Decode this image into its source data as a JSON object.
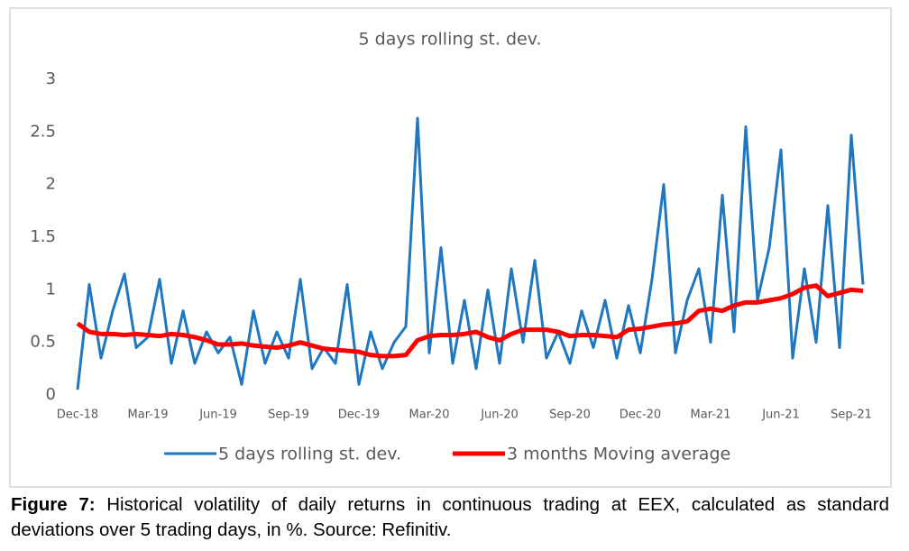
{
  "chart_data": {
    "type": "line",
    "title": "5 days rolling st. dev.",
    "categories": [
      "Dec-18",
      null,
      null,
      null,
      null,
      null,
      "Mar-19",
      null,
      null,
      null,
      null,
      null,
      "Jun-19",
      null,
      null,
      null,
      null,
      null,
      "Sep-19",
      null,
      null,
      null,
      null,
      null,
      "Dec-19",
      null,
      null,
      null,
      null,
      null,
      "Mar-20",
      null,
      null,
      null,
      null,
      null,
      "Jun-20",
      null,
      null,
      null,
      null,
      null,
      "Sep-20",
      null,
      null,
      null,
      null,
      null,
      "Dec-20",
      null,
      null,
      null,
      null,
      null,
      "Mar-21",
      null,
      null,
      null,
      null,
      null,
      "Jun-21",
      null,
      null,
      null,
      null,
      null,
      "Sep-21",
      null
    ],
    "series": [
      {
        "name": "5 days rolling st. dev.",
        "color": "#1f77c0",
        "values": [
          0.05,
          1.05,
          0.35,
          0.8,
          1.15,
          0.45,
          0.55,
          1.1,
          0.3,
          0.8,
          0.3,
          0.6,
          0.4,
          0.55,
          0.1,
          0.8,
          0.3,
          0.6,
          0.35,
          1.1,
          0.25,
          0.45,
          0.3,
          1.05,
          0.1,
          0.6,
          0.25,
          0.5,
          0.65,
          2.63,
          0.4,
          1.4,
          0.3,
          0.9,
          0.25,
          1.0,
          0.3,
          1.2,
          0.5,
          1.28,
          0.35,
          0.6,
          0.3,
          0.8,
          0.45,
          0.9,
          0.35,
          0.85,
          0.4,
          1.1,
          2.0,
          0.4,
          0.9,
          1.2,
          0.5,
          1.9,
          0.6,
          2.55,
          0.9,
          1.4,
          2.33,
          0.35,
          1.2,
          0.5,
          1.8,
          0.45,
          2.47,
          1.05
        ]
      },
      {
        "name": "3 months Moving average",
        "color": "#ff0000",
        "values": [
          0.68,
          0.6,
          0.58,
          0.58,
          0.57,
          0.58,
          0.57,
          0.56,
          0.58,
          0.57,
          0.55,
          0.52,
          0.48,
          0.48,
          0.49,
          0.47,
          0.46,
          0.45,
          0.47,
          0.5,
          0.47,
          0.44,
          0.43,
          0.42,
          0.41,
          0.38,
          0.37,
          0.37,
          0.38,
          0.52,
          0.56,
          0.57,
          0.57,
          0.58,
          0.6,
          0.55,
          0.52,
          0.58,
          0.62,
          0.62,
          0.62,
          0.6,
          0.56,
          0.57,
          0.57,
          0.56,
          0.55,
          0.62,
          0.63,
          0.65,
          0.67,
          0.68,
          0.7,
          0.8,
          0.82,
          0.8,
          0.85,
          0.88,
          0.88,
          0.9,
          0.92,
          0.96,
          1.02,
          1.04,
          0.94,
          0.97,
          1.0,
          0.99
        ]
      }
    ],
    "ylim": [
      0,
      3
    ],
    "yticks": [
      0,
      {
        "value": 0.5,
        "label": "0.5"
      },
      1,
      {
        "value": 1.5,
        "label": "1.5"
      },
      2,
      {
        "value": 2.5,
        "label": "2.5"
      },
      3
    ],
    "grid": false,
    "legend": "bottom"
  },
  "caption": {
    "label": "Figure 7:",
    "text": "Historical volatility of daily returns in continuous trading at EEX, calculated as standard deviations over 5 trading days, in %. Source: Refinitiv."
  }
}
